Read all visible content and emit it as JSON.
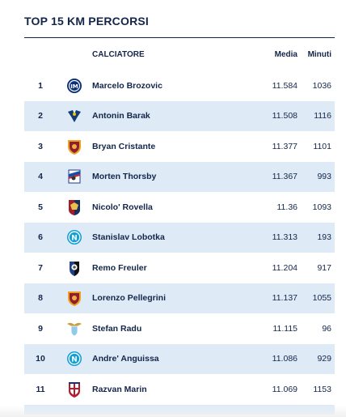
{
  "title": "TOP 15 KM PERCORSI",
  "columns": {
    "player": "CALCIATORE",
    "media": "Media",
    "minuti": "Minuti"
  },
  "rows": [
    {
      "rank": "1",
      "name": "Marcelo Brozovic",
      "media": "11.584",
      "minuti": "1036",
      "club_icon": "inter-crest-icon"
    },
    {
      "rank": "2",
      "name": "Antonin Barak",
      "media": "11.508",
      "minuti": "1116",
      "club_icon": "verona-crest-icon"
    },
    {
      "rank": "3",
      "name": "Bryan Cristante",
      "media": "11.377",
      "minuti": "1101",
      "club_icon": "roma-crest-icon"
    },
    {
      "rank": "4",
      "name": "Morten Thorsby",
      "media": "11.367",
      "minuti": "993",
      "club_icon": "sampdoria-crest-icon"
    },
    {
      "rank": "5",
      "name": "Nicolo' Rovella",
      "media": "11.36",
      "minuti": "1093",
      "club_icon": "genoa-crest-icon"
    },
    {
      "rank": "6",
      "name": "Stanislav Lobotka",
      "media": "11.313",
      "minuti": "193",
      "club_icon": "napoli-crest-icon"
    },
    {
      "rank": "7",
      "name": "Remo Freuler",
      "media": "11.204",
      "minuti": "917",
      "club_icon": "atalanta-crest-icon"
    },
    {
      "rank": "8",
      "name": "Lorenzo Pellegrini",
      "media": "11.137",
      "minuti": "1055",
      "club_icon": "roma-crest-icon"
    },
    {
      "rank": "9",
      "name": "Stefan Radu",
      "media": "11.115",
      "minuti": "96",
      "club_icon": "lazio-crest-icon"
    },
    {
      "rank": "10",
      "name": "Andre' Anguissa",
      "media": "11.086",
      "minuti": "929",
      "club_icon": "napoli-crest-icon"
    },
    {
      "rank": "11",
      "name": "Razvan Marin",
      "media": "11.069",
      "minuti": "1153",
      "club_icon": "cagliari-crest-icon"
    }
  ],
  "colors": {
    "text": "#14254a",
    "row_alt": "#deebf7",
    "rule": "#14254a"
  }
}
